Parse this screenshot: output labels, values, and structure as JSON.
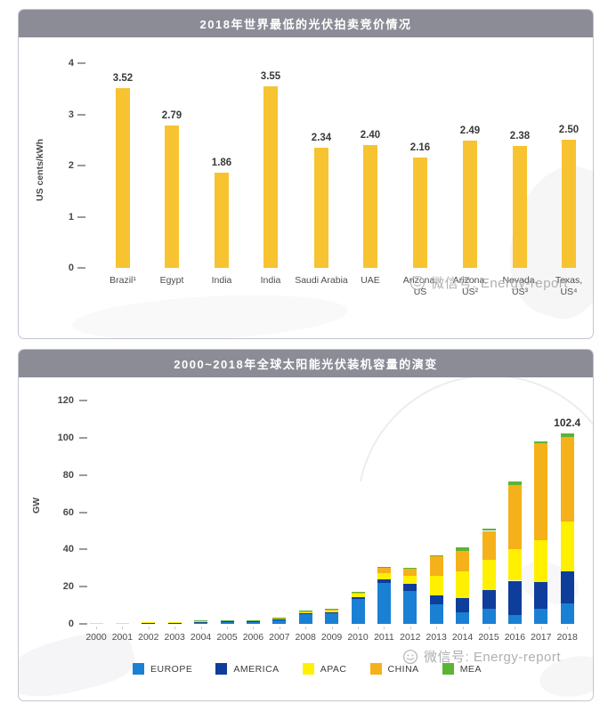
{
  "watermark": {
    "text": "微信号: Energy-report",
    "icon": "wechat-smiley-icon",
    "color": "#a9a9ad"
  },
  "chart_data": [
    {
      "type": "bar",
      "title": "2018年世界最低的光伏拍卖竞价情况",
      "ylabel": "US cents/kWh",
      "ylim": [
        0,
        4
      ],
      "yticks": [
        0,
        1,
        2,
        3,
        4
      ],
      "grid": false,
      "bar_color": "#F7C331",
      "categories": [
        "Brazil¹",
        "Egypt",
        "India",
        "India",
        "Saudi Arabia",
        "UAE",
        "Arizona,\nUS",
        "Arizona,\nUS²",
        "Nevada,\nUS³",
        "Texas,\nUS⁴"
      ],
      "values": [
        3.52,
        2.79,
        1.86,
        3.55,
        2.34,
        2.4,
        2.16,
        2.49,
        2.38,
        2.5
      ],
      "value_labels": [
        "3.52",
        "2.79",
        "1.86",
        "3.55",
        "2.34",
        "2.40",
        "2.16",
        "2.49",
        "2.38",
        "2.50"
      ]
    },
    {
      "type": "stacked-bar",
      "title": "2000~2018年全球太阳能光伏装机容量的演变",
      "ylabel": "GW",
      "ylim": [
        0,
        120
      ],
      "yticks": [
        0,
        20,
        40,
        60,
        80,
        100,
        120
      ],
      "grid": false,
      "legend_position": "bottom",
      "categories": [
        "2000",
        "2001",
        "2002",
        "2003",
        "2004",
        "2005",
        "2006",
        "2007",
        "2008",
        "2009",
        "2010",
        "2011",
        "2012",
        "2013",
        "2014",
        "2015",
        "2016",
        "2017",
        "2018"
      ],
      "series": [
        {
          "name": "EUROPE",
          "color": "#1A80D4",
          "values": [
            0.1,
            0.15,
            0.2,
            0.25,
            0.7,
            1.0,
            1.0,
            2.0,
            5.3,
            5.8,
            13.4,
            22.0,
            17.7,
            10.3,
            6.0,
            8.2,
            4.7,
            8.0,
            11.2
          ]
        },
        {
          "name": "AMERICA",
          "color": "#0E3D9B",
          "values": [
            0,
            0,
            0.05,
            0.05,
            0.1,
            0.1,
            0.15,
            0.25,
            0.4,
            0.6,
            1.0,
            2.0,
            3.7,
            5.2,
            8.0,
            9.8,
            18.5,
            14.5,
            16.9
          ]
        },
        {
          "name": "APAC",
          "color": "#FFF000",
          "values": [
            0.2,
            0.25,
            0.3,
            0.35,
            0.3,
            0.35,
            0.35,
            0.4,
            0.6,
            0.9,
            2.0,
            3.5,
            4.6,
            10.5,
            14.0,
            16.4,
            17.0,
            22.5,
            27.0
          ]
        },
        {
          "name": "CHINA",
          "color": "#F5B119",
          "values": [
            0,
            0,
            0,
            0,
            0,
            0,
            0,
            0.05,
            0.1,
            0.4,
            0.6,
            2.8,
            3.6,
            10.5,
            11.0,
            15.6,
            34.5,
            52.0,
            45.3
          ]
        },
        {
          "name": "MEA",
          "color": "#5CB434",
          "values": [
            0,
            0,
            0,
            0,
            0.05,
            0.05,
            0.1,
            0.1,
            0.2,
            0.3,
            0.3,
            0.3,
            0.4,
            0.5,
            2.0,
            1.3,
            1.9,
            1.0,
            2.0
          ]
        }
      ],
      "annotation": {
        "category": "2018",
        "label": "102.4"
      }
    }
  ]
}
